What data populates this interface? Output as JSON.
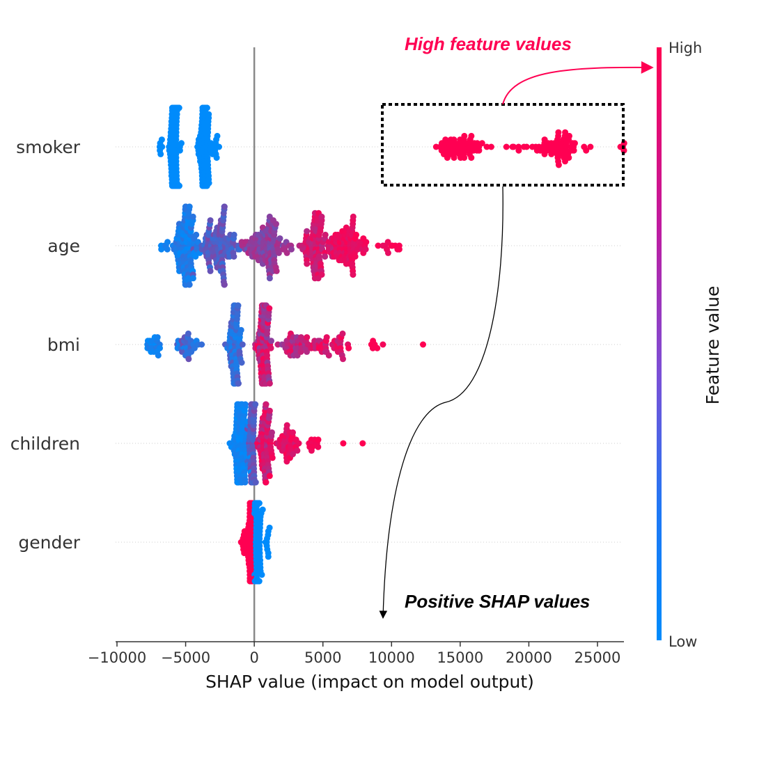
{
  "chart_data": {
    "type": "scatter",
    "subtype": "shap-beeswarm",
    "xlabel": "SHAP value (impact on model output)",
    "xlim": [
      -10500,
      29000
    ],
    "xticks": [
      -10000,
      -5000,
      0,
      5000,
      10000,
      15000,
      20000,
      25000
    ],
    "xtick_labels": [
      "−10000",
      "−5000",
      "0",
      "5000",
      "10000",
      "15000",
      "20000",
      "25000"
    ],
    "features": [
      "smoker",
      "age",
      "bmi",
      "children",
      "gender"
    ],
    "colorbar": {
      "label": "Feature value",
      "high_label": "High",
      "low_label": "Low",
      "low_color": "#008bfb",
      "high_color": "#ff0052"
    },
    "zero_line": true,
    "series": [
      {
        "feature": "smoker",
        "clusters": [
          {
            "center": -5800,
            "spread": 350,
            "n": 120,
            "value_lo": 0.0,
            "value_hi": 0.0
          },
          {
            "center": -3600,
            "spread": 400,
            "n": 120,
            "value_lo": 0.0,
            "value_hi": 0.0
          },
          {
            "center": -6800,
            "spread": 150,
            "n": 6,
            "value_lo": 0.0,
            "value_hi": 0.0
          },
          {
            "center": -2800,
            "spread": 200,
            "n": 8,
            "value_lo": 0.0,
            "value_hi": 0.0
          },
          {
            "center": 15000,
            "spread": 1800,
            "n": 60,
            "value_lo": 1.0,
            "value_hi": 1.0
          },
          {
            "center": 22200,
            "spread": 1700,
            "n": 60,
            "value_lo": 1.0,
            "value_hi": 1.0
          },
          {
            "center": 18800,
            "spread": 700,
            "n": 6,
            "value_lo": 1.0,
            "value_hi": 1.0
          },
          {
            "center": 26500,
            "spread": 500,
            "n": 4,
            "value_lo": 1.0,
            "value_hi": 1.0
          }
        ]
      },
      {
        "feature": "age",
        "clusters": [
          {
            "center": -5000,
            "spread": 700,
            "n": 110,
            "value_lo": 0.0,
            "value_hi": 0.2
          },
          {
            "center": -2500,
            "spread": 1100,
            "n": 110,
            "value_lo": 0.2,
            "value_hi": 0.5
          },
          {
            "center": 1000,
            "spread": 1400,
            "n": 110,
            "value_lo": 0.4,
            "value_hi": 0.7
          },
          {
            "center": 4500,
            "spread": 900,
            "n": 90,
            "value_lo": 0.7,
            "value_hi": 0.95
          },
          {
            "center": 6800,
            "spread": 900,
            "n": 80,
            "value_lo": 0.85,
            "value_hi": 1.0
          },
          {
            "center": 9800,
            "spread": 700,
            "n": 12,
            "value_lo": 0.9,
            "value_hi": 1.0
          },
          {
            "center": -6500,
            "spread": 300,
            "n": 6,
            "value_lo": 0.0,
            "value_hi": 0.1
          }
        ]
      },
      {
        "feature": "bmi",
        "clusters": [
          {
            "center": -7500,
            "spread": 700,
            "n": 20,
            "value_lo": 0.0,
            "value_hi": 0.15
          },
          {
            "center": -5000,
            "spread": 900,
            "n": 30,
            "value_lo": 0.05,
            "value_hi": 0.45
          },
          {
            "center": -1400,
            "spread": 400,
            "n": 90,
            "value_lo": 0.05,
            "value_hi": 0.35
          },
          {
            "center": 700,
            "spread": 400,
            "n": 110,
            "value_lo": 0.5,
            "value_hi": 1.0
          },
          {
            "center": 2900,
            "spread": 1100,
            "n": 40,
            "value_lo": 0.55,
            "value_hi": 0.95
          },
          {
            "center": 5600,
            "spread": 1200,
            "n": 40,
            "value_lo": 0.7,
            "value_hi": 1.0
          },
          {
            "center": 9000,
            "spread": 600,
            "n": 6,
            "value_lo": 0.95,
            "value_hi": 1.0
          },
          {
            "center": 12300,
            "spread": 50,
            "n": 1,
            "value_lo": 1.0,
            "value_hi": 1.0
          }
        ]
      },
      {
        "feature": "children",
        "clusters": [
          {
            "center": -1000,
            "spread": 500,
            "n": 110,
            "value_lo": 0.0,
            "value_hi": 0.1
          },
          {
            "center": -150,
            "spread": 250,
            "n": 60,
            "value_lo": 0.25,
            "value_hi": 0.5
          },
          {
            "center": 800,
            "spread": 400,
            "n": 70,
            "value_lo": 0.65,
            "value_hi": 1.0
          },
          {
            "center": 2400,
            "spread": 700,
            "n": 40,
            "value_lo": 0.8,
            "value_hi": 1.0
          },
          {
            "center": 4400,
            "spread": 500,
            "n": 10,
            "value_lo": 0.9,
            "value_hi": 1.0
          },
          {
            "center": 6500,
            "spread": 50,
            "n": 1,
            "value_lo": 1.0,
            "value_hi": 1.0
          },
          {
            "center": 7900,
            "spread": 50,
            "n": 1,
            "value_lo": 1.0,
            "value_hi": 1.0
          }
        ]
      },
      {
        "feature": "gender",
        "clusters": [
          {
            "center": -250,
            "spread": 200,
            "n": 110,
            "value_lo": 1.0,
            "value_hi": 1.0
          },
          {
            "center": 250,
            "spread": 200,
            "n": 110,
            "value_lo": 0.0,
            "value_hi": 0.0
          },
          {
            "center": 900,
            "spread": 250,
            "n": 10,
            "value_lo": 0.0,
            "value_hi": 0.0
          },
          {
            "center": -900,
            "spread": 250,
            "n": 8,
            "value_lo": 1.0,
            "value_hi": 1.0
          }
        ]
      }
    ],
    "annotations": [
      {
        "text": "High feature values",
        "color": "#ff0052",
        "points_to": "colorbar High"
      },
      {
        "text": "Positive SHAP values",
        "color": "#000000",
        "points_to": "smoker high-value cluster"
      }
    ]
  }
}
